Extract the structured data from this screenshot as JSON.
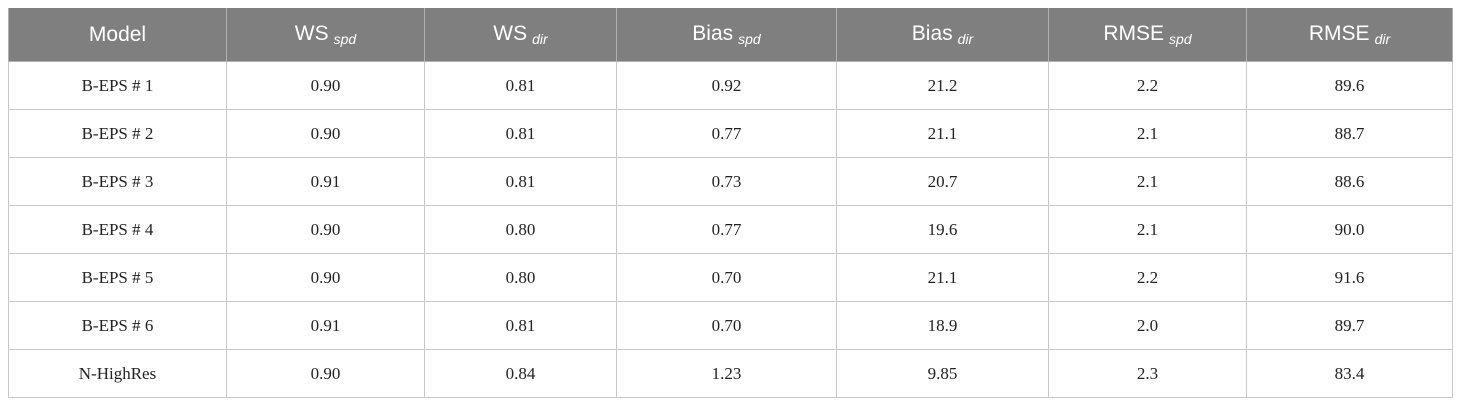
{
  "table": {
    "header": [
      {
        "text": "Model"
      },
      {
        "text": "WS",
        "sub": "spd"
      },
      {
        "text": "WS",
        "sub": "dir"
      },
      {
        "text": "Bias",
        "sub": "spd"
      },
      {
        "text": "Bias",
        "sub": "dir"
      },
      {
        "text": "RMSE",
        "sub": "spd"
      },
      {
        "text": "RMSE",
        "sub": "dir"
      }
    ],
    "rows": [
      [
        "B-EPS # 1",
        "0.90",
        "0.81",
        "0.92",
        "21.2",
        "2.2",
        "89.6"
      ],
      [
        "B-EPS # 2",
        "0.90",
        "0.81",
        "0.77",
        "21.1",
        "2.1",
        "88.7"
      ],
      [
        "B-EPS # 3",
        "0.91",
        "0.81",
        "0.73",
        "20.7",
        "2.1",
        "88.6"
      ],
      [
        "B-EPS # 4",
        "0.90",
        "0.80",
        "0.77",
        "19.6",
        "2.1",
        "90.0"
      ],
      [
        "B-EPS # 5",
        "0.90",
        "0.80",
        "0.70",
        "21.1",
        "2.2",
        "91.6"
      ],
      [
        "B-EPS # 6",
        "0.91",
        "0.81",
        "0.70",
        "18.9",
        "2.0",
        "89.7"
      ],
      [
        "N-HighRes",
        "0.90",
        "0.84",
        "1.23",
        "9.85",
        "2.3",
        "83.4"
      ]
    ]
  }
}
